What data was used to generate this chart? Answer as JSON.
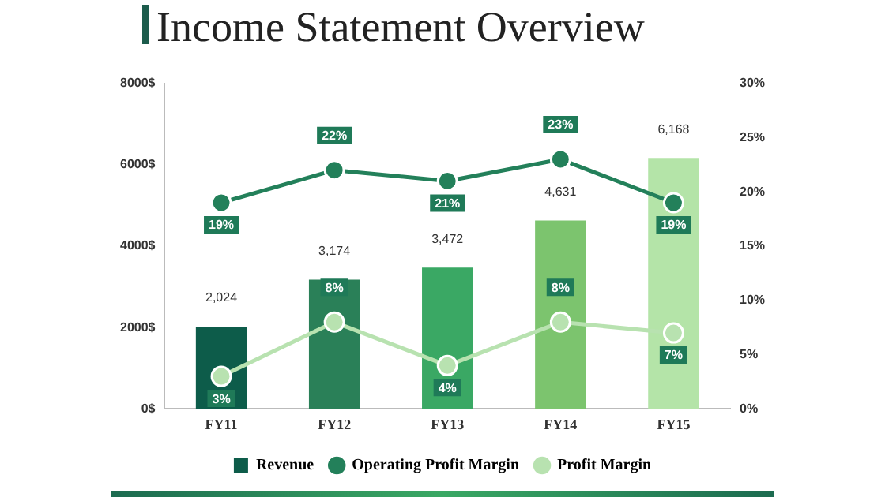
{
  "chart_data": {
    "type": "bar",
    "title": "Income Statement Overview",
    "categories": [
      "FY11",
      "FY12",
      "FY13",
      "FY14",
      "FY15"
    ],
    "series": [
      {
        "name": "Revenue",
        "colors": [
          "#0d5c4a",
          "#2a8058",
          "#3aa864",
          "#7cc46e",
          "#b4e4a8"
        ],
        "values": [
          2024,
          3174,
          3472,
          4631,
          6168
        ],
        "value_labels": [
          "2,024",
          "3,174",
          "3,472",
          "4,631",
          "6,168"
        ]
      },
      {
        "name": "Operating Profit Margin",
        "type": "line",
        "axis": "y2",
        "color": "#23805a",
        "values": [
          19,
          22,
          21,
          23,
          19
        ],
        "value_labels": [
          "19%",
          "22%",
          "21%",
          "23%",
          "19%"
        ]
      },
      {
        "name": "Profit Margin",
        "type": "line",
        "axis": "y2",
        "color": "#b8e2b0",
        "values": [
          3,
          8,
          4,
          8,
          7
        ],
        "value_labels": [
          "3%",
          "8%",
          "4%",
          "8%",
          "7%"
        ]
      }
    ],
    "ylim": [
      0,
      8000
    ],
    "yticks": [
      {
        "value": 0,
        "label": "0$"
      },
      {
        "value": 2000,
        "label": "2000$"
      },
      {
        "value": 4000,
        "label": "4000$"
      },
      {
        "value": 6000,
        "label": "6000$"
      },
      {
        "value": 8000,
        "label": "8000$"
      }
    ],
    "y2lim": [
      0,
      30
    ],
    "y2ticks": [
      {
        "value": 0,
        "label": "0%"
      },
      {
        "value": 5,
        "label": "5%"
      },
      {
        "value": 10,
        "label": "10%"
      },
      {
        "value": 15,
        "label": "15%"
      },
      {
        "value": 20,
        "label": "20%"
      },
      {
        "value": 25,
        "label": "25%"
      },
      {
        "value": 30,
        "label": "30%"
      }
    ],
    "grid": false,
    "legend": "bottom",
    "marker": "circle"
  }
}
